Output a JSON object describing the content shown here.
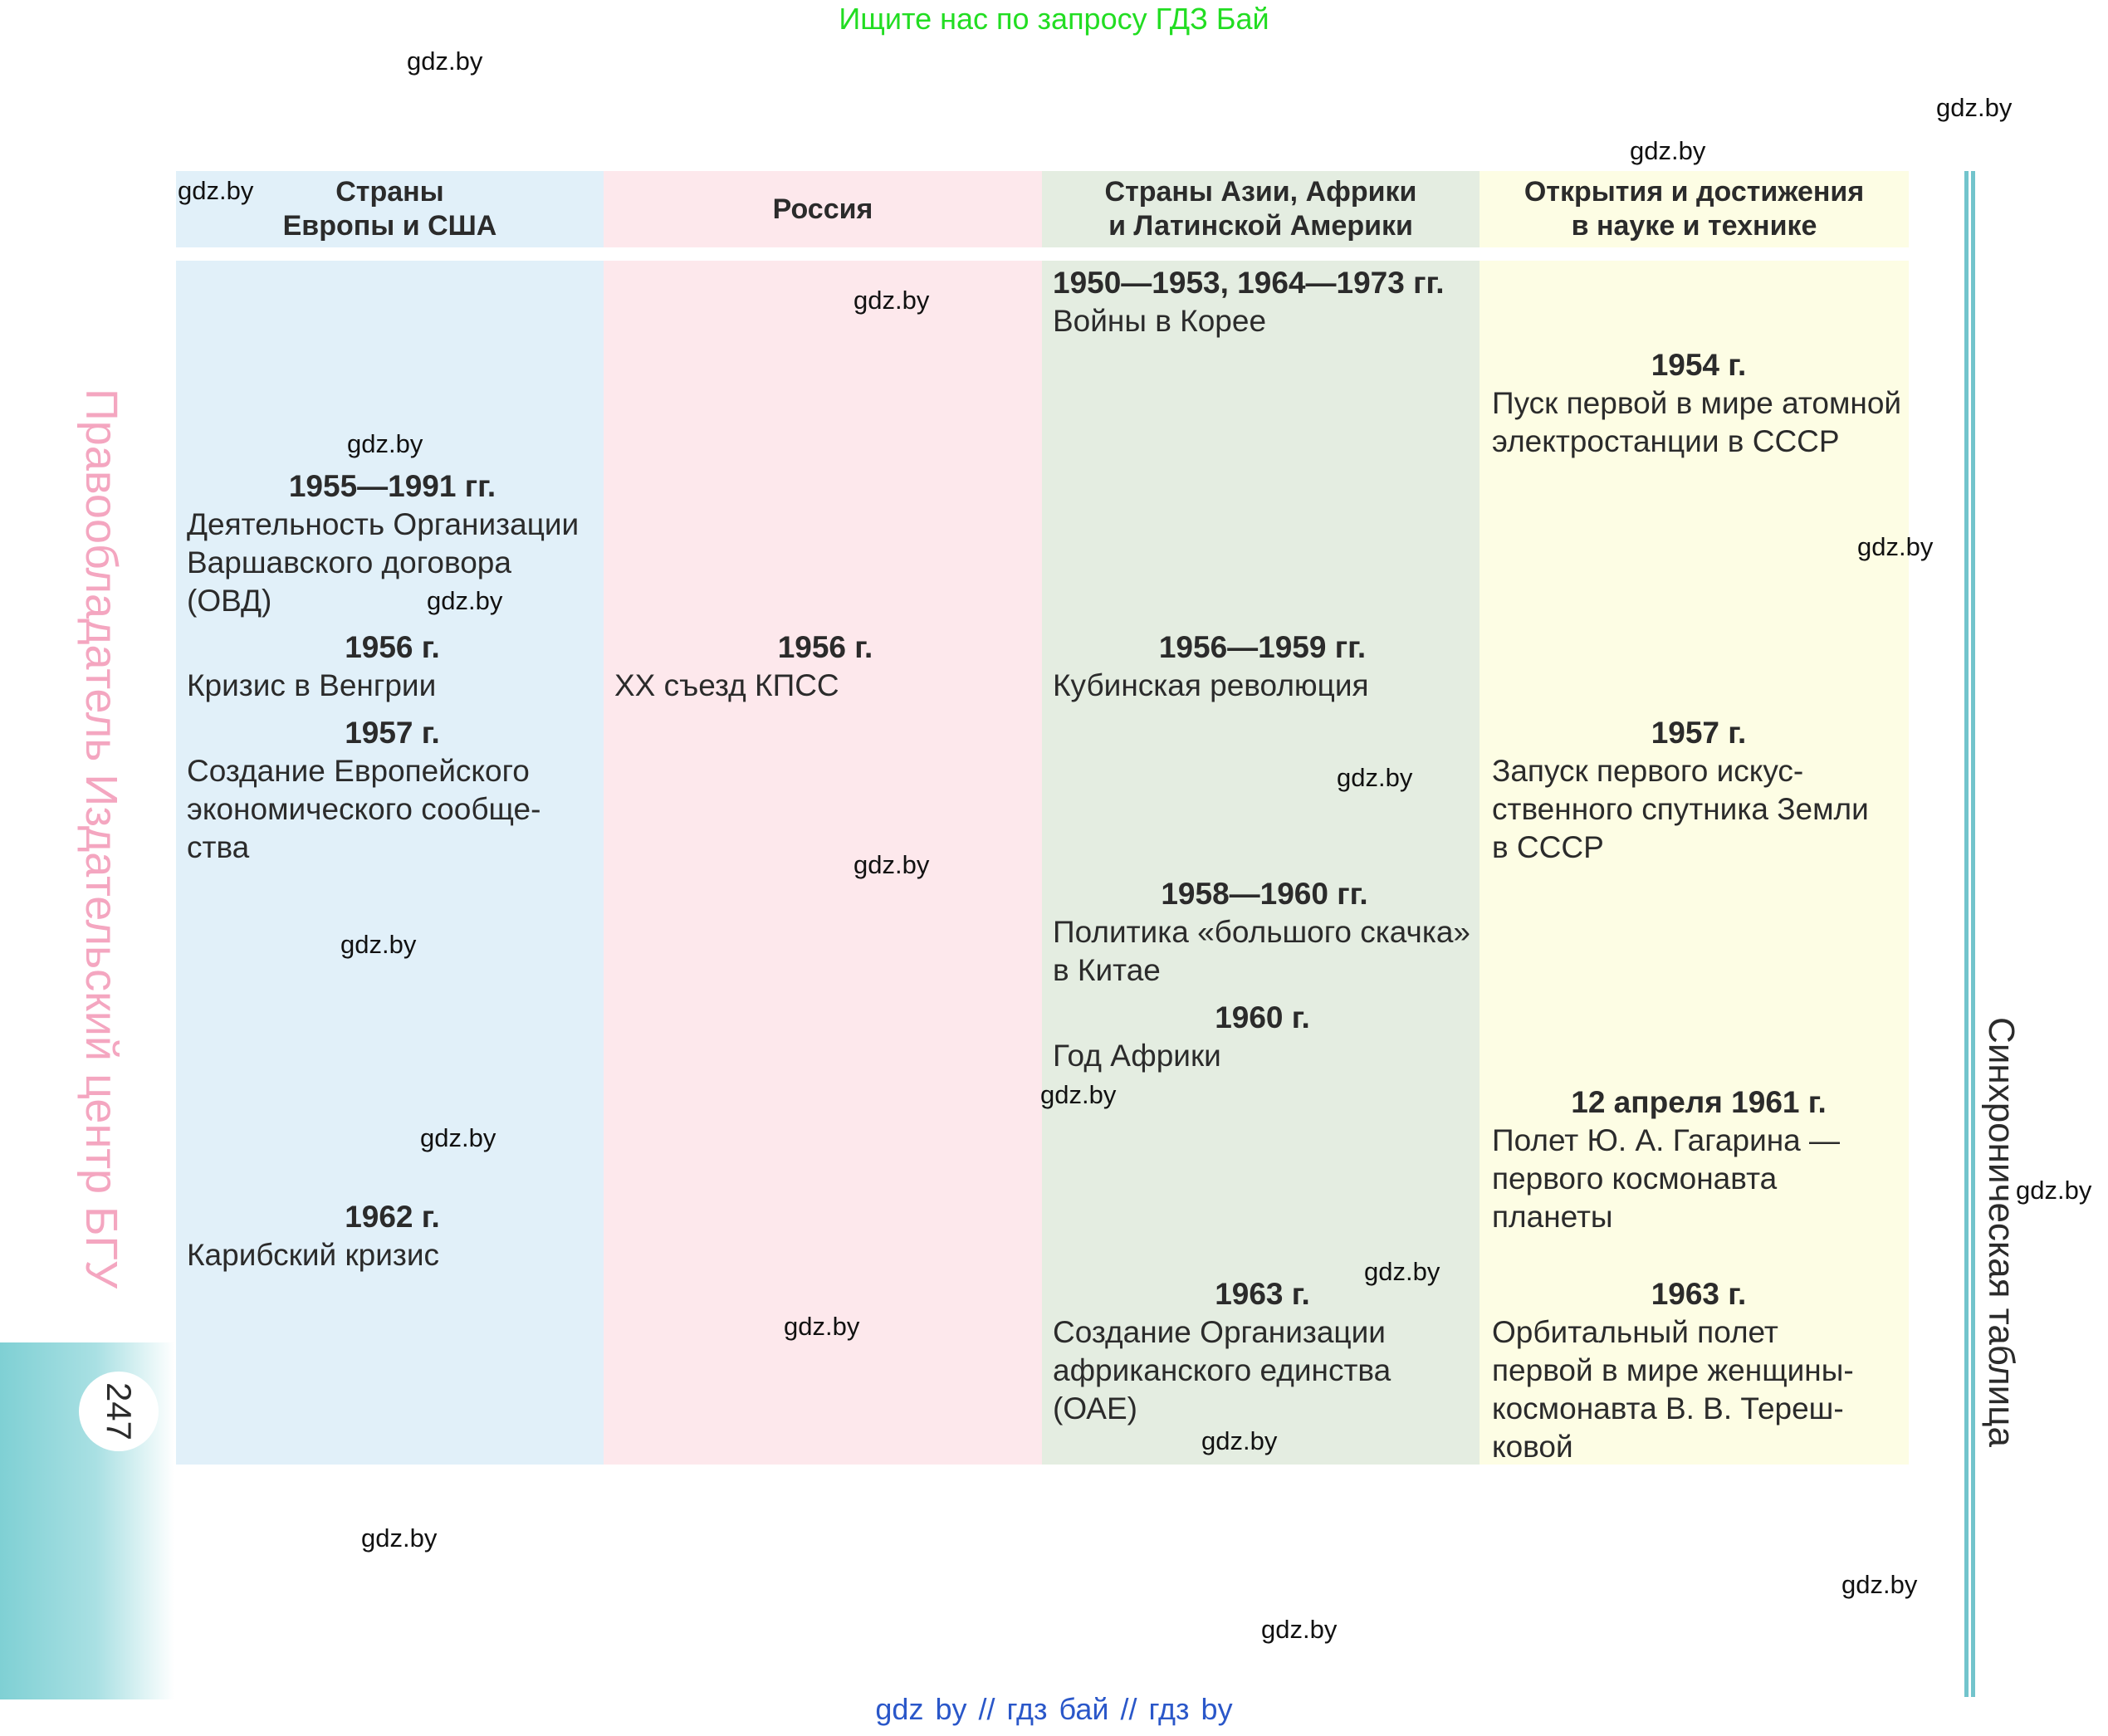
{
  "banner": "Ищите нас по запросу ГДЗ Бай",
  "footer": {
    "links": [
      "gdz by",
      "гдз бай",
      "гдз by"
    ],
    "separator": "//"
  },
  "watermark": "gdz.by",
  "side": {
    "rightsholder": "Правообладатель Издательский центр БГУ",
    "page_number": "247",
    "section_title": "Синхроническая таблица"
  },
  "table": {
    "headers": [
      "Страны\nЕвропы и США",
      "Россия",
      "Страны Азии, Африки\nи Латинской Америки",
      "Открытия и достижения\nв науке и технике"
    ],
    "europe_usa": [
      {
        "date": "1955—1991 гг.",
        "text": "Деятельность Организации\nВаршавского договора\n(ОВД)"
      },
      {
        "date": "1956 г.",
        "text": "Кризис в Венгрии"
      },
      {
        "date": "1957 г.",
        "text": "Создание Европейского\nэкономического сообще-\nства"
      },
      {
        "date": "1962 г.",
        "text": "Карибский кризис"
      }
    ],
    "russia": [
      {
        "date": "1956 г.",
        "text": "XX съезд КПСС"
      }
    ],
    "asia_africa_latam": [
      {
        "date": "1950—1953, 1964—1973 гг.",
        "text": "Войны в Корее"
      },
      {
        "date": "1956—1959 гг.",
        "text": "Кубинская революция"
      },
      {
        "date": "1958—1960 гг.",
        "text": "Политика «большого скачка»\nв Китае"
      },
      {
        "date": "1960 г.",
        "text": "Год Африки"
      },
      {
        "date": "1963 г.",
        "text": "Создание Организации\nафриканского единства\n(ОАЕ)"
      }
    ],
    "science": [
      {
        "date": "1954 г.",
        "text": "Пуск первой в мире атомной\nэлектростанции в СССР"
      },
      {
        "date": "1957 г.",
        "text": "Запуск первого искус-\nственного спутника Земли\nв СССР"
      },
      {
        "date": "12 апреля 1961 г.",
        "text": "Полет Ю. А. Гагарина —\nпервого космонавта планеты"
      },
      {
        "date": "1963 г.",
        "text": "Орбитальный полет\nпервой в мире женщины-\nкосмонавта В. В. Тереш-\nковой"
      }
    ]
  }
}
